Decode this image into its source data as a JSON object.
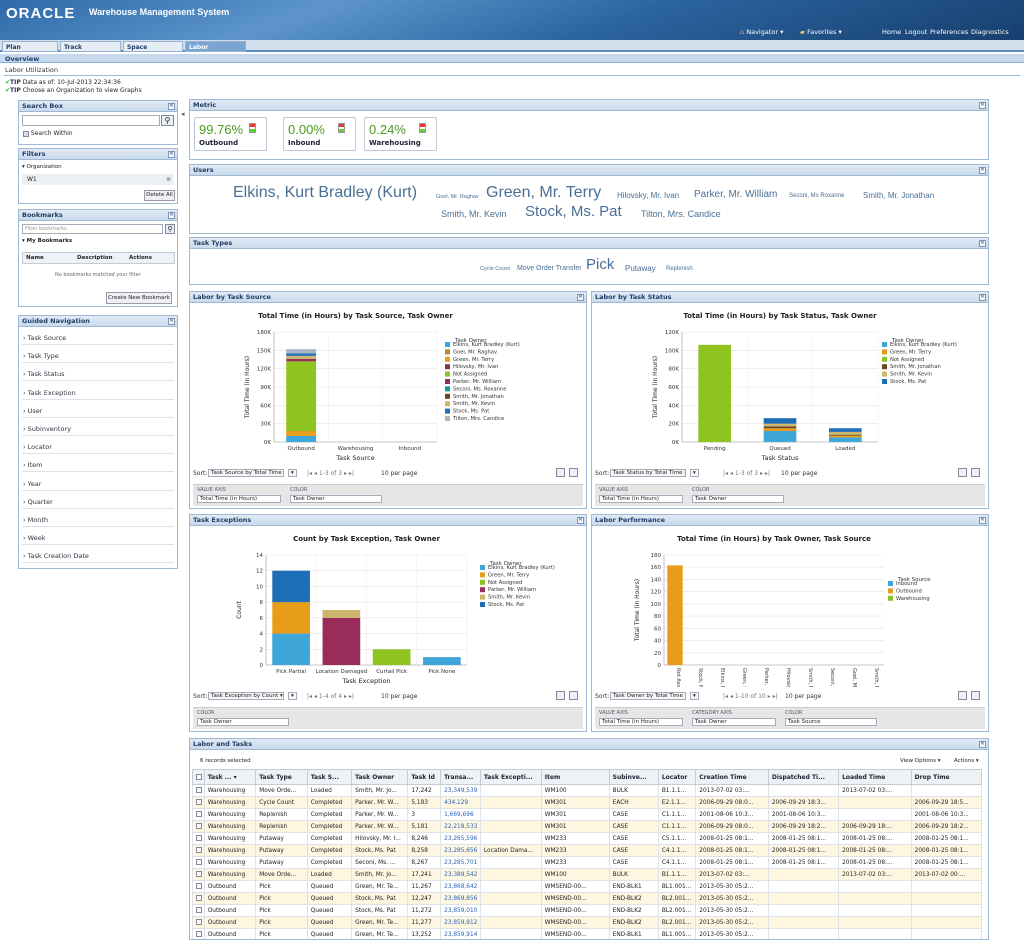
{
  "app": {
    "logo": "ORACLE",
    "title": "Warehouse Management System",
    "navigator": "Navigator ▾",
    "favorites": "Favorites ▾",
    "links": [
      "Home",
      "Logout",
      "Preferences",
      "Diagnostics"
    ]
  },
  "tabs": [
    "Plan Fulfillment",
    "Track Fulfillment",
    "Space Utilization",
    "Labor Utilization"
  ],
  "subtab": "Overview",
  "page": {
    "title": "Labor Utilization",
    "tip1_label": "TIP",
    "tip1": "Data as of: 10-Jul-2013 22:34:36",
    "tip2_label": "TIP",
    "tip2": "Choose an Organization to view Graphs"
  },
  "search": {
    "title": "Search Box",
    "within": "Search Within"
  },
  "filters": {
    "title": "Filters",
    "org_label": "▾ Organization",
    "org_value": "W1",
    "delete_all": "Delete All"
  },
  "bookmarks": {
    "title": "Bookmarks",
    "placeholder": "Filter bookmarks",
    "my": "▾ My Bookmarks",
    "cols": [
      "Name",
      "Description",
      "Actions"
    ],
    "empty": "No bookmarks matched your filter",
    "create": "Create New Bookmark"
  },
  "guided": {
    "title": "Guided Navigation",
    "items": [
      "Task Source",
      "Task Type",
      "Task Status",
      "Task Exception",
      "User",
      "Subinventory",
      "Locator",
      "Item",
      "Year",
      "Quarter",
      "Month",
      "Week",
      "Task Creation Date"
    ]
  },
  "metric": {
    "title": "Metric",
    "cards": [
      {
        "value": "99.76%",
        "label": "Outbound"
      },
      {
        "value": "0.00%",
        "label": "Inbound"
      },
      {
        "value": "0.24%",
        "label": "Warehousing"
      }
    ]
  },
  "users": {
    "title": "Users",
    "names": [
      "Elkins, Kurt Bradley (Kurt)",
      "Goel, Mr. Raghav",
      "Green, Mr. Terry",
      "Hilovsky, Mr. Ivan",
      "Parker, Mr. William",
      "Seconi, Ms Roxanne",
      "Smith, Mr. Jonathan",
      "Smith, Mr. Kevin",
      "Stock, Ms. Pat",
      "Tilton, Mrs. Candice"
    ]
  },
  "task_types": {
    "title": "Task Types",
    "names": [
      "Cycle Count",
      "Move Order Transfer",
      "Pick",
      "Putaway",
      "Replenish"
    ]
  },
  "colors": {
    "c1": "#3ea6d8",
    "c2": "#e79c1a",
    "c3": "#8fc31f",
    "c4": "#9a2c5a",
    "c5": "#ccb66e",
    "c6": "#1f6fb8",
    "c7": "#6d4321",
    "c8": "#159a9c",
    "c9": "#a94a1a",
    "c10": "#d6c87a",
    "c11": "#a6b8c8",
    "c12": "#e05a3a"
  },
  "labor_source": {
    "title": "Labor by Task Source",
    "sort": "Sort:",
    "sort_value": "Task Source by Total Time ▾",
    "pager": "1-3 of 3",
    "perpage": "10 per page",
    "value_axis_label": "VALUE AXIS",
    "value_axis": "Total Time (in Hours)",
    "color_label": "COLOR",
    "color": "Task Owner"
  },
  "labor_status": {
    "title": "Labor by Task Status",
    "sort": "Sort:",
    "sort_value": "Task Status by Total Time (in ▾",
    "pager": "1-3 of 3",
    "perpage": "10 per page",
    "value_axis_label": "VALUE AXIS",
    "value_axis": "Total Time (in Hours)",
    "color_label": "COLOR",
    "color": "Task Owner"
  },
  "task_exc": {
    "title": "Task Exceptions",
    "sort": "Sort:",
    "sort_value": "Task Exception by Count ▾",
    "pager": "1-4 of 4",
    "perpage": "10 per page",
    "color_label": "COLOR",
    "color": "Task Owner"
  },
  "labor_perf": {
    "title": "Labor Performance",
    "sort": "Sort:",
    "sort_value": "Task Owner by Total Time (ir ▾",
    "pager": "1-10 of 10",
    "perpage": "10 per page",
    "value_axis_label": "VALUE AXIS",
    "value_axis": "Total Time (in Hours)",
    "cat_axis_label": "CATEGORY AXIS",
    "cat_axis": "Task Owner",
    "color_label": "COLOR",
    "color": "Task Source"
  },
  "chart_data": [
    {
      "type": "bar",
      "stacked": true,
      "title": "Total Time (in Hours) by Task Source, Task Owner",
      "xlabel": "Task Source",
      "ylabel": "Total Time (in Hours)",
      "ylim": [
        0,
        180000
      ],
      "yticks": [
        "0K",
        "30K",
        "60K",
        "90K",
        "120K",
        "150K",
        "180K"
      ],
      "categories": [
        "Outbound",
        "Warehousing",
        "Inbound"
      ],
      "legend_title": "Task Owner",
      "series": [
        {
          "name": "Elkins, Kurt Bradley (Kurt)",
          "values": [
            10000,
            0,
            0
          ]
        },
        {
          "name": "Goel, Mr. Raghav",
          "values": [
            0,
            0,
            0
          ]
        },
        {
          "name": "Green, Mr. Terry",
          "values": [
            8000,
            0,
            0
          ]
        },
        {
          "name": "Hilovsky, Mr. Ivan",
          "values": [
            0,
            0,
            0
          ]
        },
        {
          "name": "Not Assigned",
          "values": [
            114000,
            0,
            0
          ]
        },
        {
          "name": "Parker, Mr. William",
          "values": [
            4000,
            0,
            0
          ]
        },
        {
          "name": "Seconi, Ms. Roxanne",
          "values": [
            0,
            0,
            0
          ]
        },
        {
          "name": "Smith, Mr. Jonathan",
          "values": [
            0,
            0,
            0
          ]
        },
        {
          "name": "Smith, Mr. Kevin",
          "values": [
            5000,
            0,
            0
          ]
        },
        {
          "name": "Stock, Ms. Pat",
          "values": [
            4000,
            0,
            0
          ]
        },
        {
          "name": "Tilton, Mrs. Candice",
          "values": [
            7000,
            0,
            0
          ]
        }
      ]
    },
    {
      "type": "bar",
      "stacked": true,
      "title": "Total Time (in Hours) by Task Status, Task Owner",
      "xlabel": "Task Status",
      "ylabel": "Total Time (in Hours)",
      "ylim": [
        0,
        120000
      ],
      "yticks": [
        "0K",
        "20K",
        "40K",
        "60K",
        "80K",
        "100K",
        "120K"
      ],
      "categories": [
        "Pending",
        "Queued",
        "Loaded"
      ],
      "legend_title": "Task Owner",
      "series": [
        {
          "name": "Elkins, Kurt Bradley (Kurt)",
          "values": [
            0,
            12000,
            5000
          ]
        },
        {
          "name": "Green, Mr. Terry",
          "values": [
            0,
            3000,
            2000
          ]
        },
        {
          "name": "Not Assigned",
          "values": [
            106000,
            0,
            0
          ]
        },
        {
          "name": "Smith, Mr. Jonathan",
          "values": [
            0,
            2000,
            1000
          ]
        },
        {
          "name": "Smith, Mr. Kevin",
          "values": [
            0,
            3000,
            3000
          ]
        },
        {
          "name": "Stock, Ms. Pat",
          "values": [
            0,
            6000,
            4000
          ]
        }
      ]
    },
    {
      "type": "bar",
      "stacked": true,
      "title": "Count by Task Exception, Task Owner",
      "xlabel": "Task Exception",
      "ylabel": "Count",
      "ylim": [
        0,
        14
      ],
      "yticks": [
        "0",
        "2",
        "4",
        "6",
        "8",
        "10",
        "12",
        "14"
      ],
      "categories": [
        "Pick Partial",
        "Location Damaged",
        "Curtail Pick",
        "Pick None"
      ],
      "legend_title": "Task Owner",
      "series": [
        {
          "name": "Elkins, Kurt Bradley (Kurt)",
          "values": [
            4,
            0,
            0,
            1
          ]
        },
        {
          "name": "Green, Mr. Terry",
          "values": [
            4,
            0,
            0,
            0
          ]
        },
        {
          "name": "Not Assigned",
          "values": [
            0,
            0,
            2,
            0
          ]
        },
        {
          "name": "Parker, Mr. William",
          "values": [
            0,
            6,
            0,
            0
          ]
        },
        {
          "name": "Smith, Mr. Kevin",
          "values": [
            0,
            1,
            0,
            0
          ]
        },
        {
          "name": "Stock, Ms. Pat",
          "values": [
            4,
            0,
            0,
            0
          ]
        }
      ]
    },
    {
      "type": "bar",
      "stacked": true,
      "title": "Total Time (in Hours) by Task Owner, Task Source",
      "xlabel": "Task Owner",
      "ylabel": "Total Time (in Hours)",
      "ylim": [
        0,
        180
      ],
      "yticks": [
        "0",
        "20",
        "40",
        "60",
        "80",
        "100",
        "120",
        "140",
        "160",
        "180"
      ],
      "categories": [
        "Not Assigned",
        "Stock, Ms. Pat",
        "Elkins, Kurt Bradley (Kurt)",
        "Green, Mr. Terry",
        "Parker, Mr. William",
        "Hilovsky, Mr. Ivan",
        "Smith, Mr. Kevin",
        "Seconi, Ms. Roxanne",
        "Goel, Mr. Raghav",
        "Smith, Mr. Jonathan"
      ],
      "legend_title": "Task Source",
      "series": [
        {
          "name": "Inbound",
          "values": [
            0,
            0,
            0,
            0,
            0,
            0,
            0,
            0,
            0,
            0
          ]
        },
        {
          "name": "Outbound",
          "values": [
            163,
            0,
            0,
            0,
            0,
            0,
            0,
            0,
            0,
            0
          ]
        },
        {
          "name": "Warehousing",
          "values": [
            0,
            0,
            0,
            0,
            0,
            0,
            0,
            0,
            0,
            0
          ]
        }
      ]
    }
  ],
  "grid": {
    "title": "Labor and Tasks",
    "selected": "6 records selected",
    "view_options": "View Options ▾",
    "actions": "Actions ▾",
    "cols": [
      "Task ... ▾",
      "Task Type",
      "Task S...",
      "Task Owner",
      "Task Id",
      "Transa...",
      "Task Excepti...",
      "Item",
      "Subinve...",
      "Locator",
      "Creation Time",
      "Dispatched Ti...",
      "Loaded Time",
      "Drop Time"
    ],
    "rows": [
      [
        "Warehousing",
        "Move Orde...",
        "Loaded",
        "Smith, Mr. Jo...",
        "17,242",
        "23,349,539",
        "",
        "WM100",
        "BULK",
        "B1.1.1...",
        "2013-07-02 03:...",
        "",
        "2013-07-02 03:...",
        ""
      ],
      [
        "Warehousing",
        "Cycle Count",
        "Completed",
        "Parker, Mr. W...",
        "5,183",
        "434,129",
        "",
        "WM301",
        "EACH",
        "E2.1.1...",
        "2006-09-29 08:0...",
        "2006-09-29 18:3...",
        "",
        "2006-09-29 18:5..."
      ],
      [
        "Warehousing",
        "Replenish",
        "Completed",
        "Parker, Mr. W...",
        "3",
        "1,669,696",
        "",
        "WM301",
        "CASE",
        "C1.1.1...",
        "2001-08-06 10:3...",
        "2001-08-06 10:3...",
        "",
        "2001-08-06 10:3..."
      ],
      [
        "Warehousing",
        "Replenish",
        "Completed",
        "Parker, Mr. W...",
        "5,181",
        "22,218,533",
        "",
        "WM301",
        "CASE",
        "C1.1.1...",
        "2006-09-29 08:0...",
        "2006-09-29 18:2...",
        "2006-09-29 18:...",
        "2006-09-29 18:2..."
      ],
      [
        "Warehousing",
        "Putaway",
        "Completed",
        "Hilovsky, Mr. I...",
        "8,246",
        "23,265,596",
        "",
        "WM233",
        "CASE",
        "C5.1.1...",
        "2008-01-25 08:1...",
        "2008-01-25 08:1...",
        "2008-01-25 08:...",
        "2008-01-25 08:1..."
      ],
      [
        "Warehousing",
        "Putaway",
        "Completed",
        "Stock, Ms. Pat",
        "8,258",
        "23,285,656",
        "Location Dama...",
        "WM233",
        "CASE",
        "C4.1.1...",
        "2008-01-25 08:1...",
        "2008-01-25 08:1...",
        "2008-01-25 08:...",
        "2008-01-25 08:1..."
      ],
      [
        "Warehousing",
        "Putaway",
        "Completed",
        "Seconi, Ms. ...",
        "8,267",
        "23,285,701",
        "",
        "WM233",
        "CASE",
        "C4.1.1...",
        "2008-01-25 08:1...",
        "2008-01-25 08:1...",
        "2008-01-25 08:...",
        "2008-01-25 08:1..."
      ],
      [
        "Warehousing",
        "Move Orde...",
        "Loaded",
        "Smith, Mr. Jo...",
        "17,241",
        "23,389,542",
        "",
        "WM100",
        "BULK",
        "B1.1.1...",
        "2013-07-02 03:...",
        "",
        "2013-07-02 03:...",
        "2013-07-02 00:..."
      ],
      [
        "Outbound",
        "Pick",
        "Queued",
        "Green, Mr. Te...",
        "11,267",
        "23,868,642",
        "",
        "WMSEND-00...",
        "END-BLK1",
        "BL1.001...",
        "2013-05-30 05:2...",
        "",
        "",
        ""
      ],
      [
        "Outbound",
        "Pick",
        "Queued",
        "Stock, Ms. Pat",
        "12,247",
        "23,869,856",
        "",
        "WMSEND-00...",
        "END-BLK2",
        "BL2.001...",
        "2013-05-30 05:2...",
        "",
        "",
        ""
      ],
      [
        "Outbound",
        "Pick",
        "Queued",
        "Stock, Ms. Pat",
        "11,272",
        "23,859,010",
        "",
        "WMSEND-00...",
        "END-BLK2",
        "BL2.001...",
        "2013-05-30 05:2...",
        "",
        "",
        ""
      ],
      [
        "Outbound",
        "Pick",
        "Queued",
        "Green, Mr. Te...",
        "11,277",
        "23,859,912",
        "",
        "WMSEND-00...",
        "END-BLK2",
        "BL2.001...",
        "2013-05-30 05:2...",
        "",
        "",
        ""
      ],
      [
        "Outbound",
        "Pick",
        "Queued",
        "Green, Mr. Te...",
        "13,252",
        "23,859,914",
        "",
        "WMSEND-00...",
        "END-BLK1",
        "BL1.001...",
        "2013-05-30 05:2...",
        "",
        "",
        ""
      ]
    ]
  }
}
